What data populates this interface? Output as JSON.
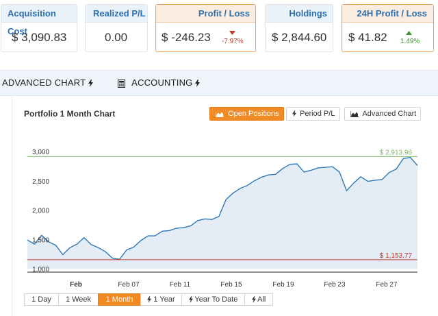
{
  "summary": {
    "acquisition_cost": {
      "label": "Acquisition Cost",
      "value": "$ 3,090.83"
    },
    "realized_pl": {
      "label": "Realized P/L",
      "value": "0.00"
    },
    "profit_loss": {
      "label": "Profit / Loss",
      "value": "$ -246.23",
      "pct": "-7.97%"
    },
    "holdings": {
      "label": "Holdings",
      "value": "$ 2,844.60"
    },
    "profit_24h": {
      "label": "24H Profit / Loss",
      "value": "$ 41.82",
      "pct": "1.49%"
    }
  },
  "tabs": [
    {
      "label": "ADVANCED CHART",
      "icon": "bolt-icon"
    },
    {
      "label": "ACCOUNTING",
      "icon": "bolt-icon",
      "prefix_icon": "calculator-icon"
    }
  ],
  "chart_panel": {
    "title": "Portfolio 1 Month Chart",
    "buttons": [
      {
        "label": "Open Positions",
        "icon": "area-chart-icon",
        "active": true
      },
      {
        "label": "Period P/L",
        "icon": "bolt-icon",
        "active": false
      },
      {
        "label": "Advanced Chart",
        "icon": "area-chart-icon",
        "active": false
      }
    ],
    "ranges": [
      {
        "label": "1 Day",
        "active": false
      },
      {
        "label": "1 Week",
        "active": false
      },
      {
        "label": "1 Month",
        "active": true
      },
      {
        "label": "1 Year",
        "icon": "bolt-icon",
        "active": false
      },
      {
        "label": "Year To Date",
        "icon": "bolt-icon",
        "active": false
      },
      {
        "label": "All",
        "icon": "bolt-icon",
        "active": false
      }
    ]
  },
  "colors": {
    "accent": "#f08a24",
    "line": "#2e78b7",
    "area": "#e4edf5",
    "max_line": "#7cbd6a",
    "min_line": "#c0392b"
  },
  "chart_data": {
    "type": "area",
    "y_ticks": [
      "3,000",
      "2,500",
      "2,000",
      "1,500",
      "1,000"
    ],
    "ylim": [
      1000,
      3000
    ],
    "x_ticks": [
      "Feb",
      "Feb 07",
      "Feb 11",
      "Feb 15",
      "Feb 19",
      "Feb 23",
      "Feb 27"
    ],
    "max_label": "$ 2,913.96",
    "max_value": 2913.96,
    "min_label": "$ 1,153.77",
    "min_value": 1153.77,
    "series": [
      {
        "x": [
          "Feb 01",
          "Feb 01",
          "Feb 02",
          "Feb 02",
          "Feb 03",
          "Feb 03",
          "Feb 04",
          "Feb 04",
          "Feb 05",
          "Feb 05",
          "Feb 06",
          "Feb 06",
          "Feb 07",
          "Feb 07",
          "Feb 08",
          "Feb 08",
          "Feb 09",
          "Feb 09",
          "Feb 10",
          "Feb 10",
          "Feb 11",
          "Feb 11",
          "Feb 12",
          "Feb 12",
          "Feb 13",
          "Feb 13",
          "Feb 14",
          "Feb 14",
          "Feb 15",
          "Feb 15",
          "Feb 16",
          "Feb 16",
          "Feb 17",
          "Feb 17",
          "Feb 18",
          "Feb 18",
          "Feb 19",
          "Feb 19",
          "Feb 20",
          "Feb 20",
          "Feb 21",
          "Feb 21",
          "Feb 22",
          "Feb 22",
          "Feb 23",
          "Feb 23",
          "Feb 24",
          "Feb 24",
          "Feb 25",
          "Feb 25",
          "Feb 26",
          "Feb 26",
          "Feb 27",
          "Feb 27",
          "Feb 28",
          "Feb 28"
        ],
        "values": [
          1490,
          1420,
          1570,
          1460,
          1400,
          1240,
          1360,
          1420,
          1530,
          1410,
          1360,
          1290,
          1180,
          1160,
          1320,
          1370,
          1480,
          1560,
          1560,
          1640,
          1650,
          1690,
          1700,
          1730,
          1820,
          1850,
          1840,
          1890,
          2180,
          2290,
          2370,
          2420,
          2500,
          2560,
          2600,
          2610,
          2710,
          2780,
          2790,
          2650,
          2680,
          2720,
          2730,
          2740,
          2650,
          2330,
          2460,
          2570,
          2490,
          2510,
          2520,
          2640,
          2700,
          2880,
          2900,
          2760
        ]
      }
    ]
  }
}
